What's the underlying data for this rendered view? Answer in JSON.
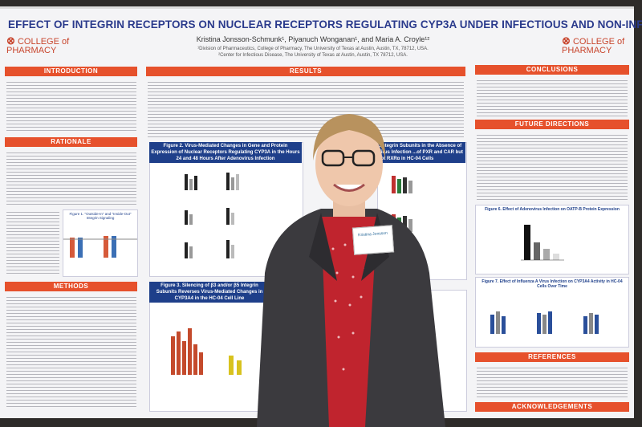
{
  "poster": {
    "title": "EFFECT OF INTEGRIN RECEPTORS ON NUCLEAR RECEPTORS REGULATING CYP3A UNDER INFECTIOUS AND NON-INFECTIOUS CONDITIONS",
    "authors": "Kristina Jonsson-Schmunk¹, Piyanuch Wonganan¹, and Maria A. Croyle¹²",
    "affiliation_1": "¹Division of Pharmaceutics, College of Pharmacy, The University of Texas at Austin, Austin, TX, 78712, USA.",
    "affiliation_2": "²Center for Infectious Disease, The University of Texas at Austin, Austin, TX 78712, USA.",
    "logo_line1": "COLLEGE of",
    "logo_line2": "PHARMACY",
    "sections": {
      "introduction": "INTRODUCTION",
      "rationale": "RATIONALE",
      "methods": "METHODS",
      "results": "RESULTS",
      "conclusions": "CONCLUSIONS",
      "future_directions": "FUTURE DIRECTIONS",
      "references": "REFERENCES",
      "acknowledgements": "ACKNOWLEDGEMENTS"
    },
    "fig1_title": "Figure 1. \"Outside-In\" and \"Inside-Out\" Integrin Signaling",
    "fig2_title": "Figure 2. Virus-Mediated Changes in Gene and Protein Expression of Nuclear Receptors Regulating CYP3A in the Hours 24 and 48 Hours After Adenovirus Infection",
    "fig3_title": "Figure 3. Silencing of β3 and/or β5 Integrin Subunits Reverses Virus-Mediated Changes in CYP3A4 in the HC-04 Cell Line",
    "fig4_title": "...ntegrin Subunits in the Absence of Virus Infection ...of PXR and CAR but not RXRα in HC-04 Cells",
    "fig6_title": "Figure 6. Effect of Adenovirus Infection on OATP-B Protein Expression",
    "fig7_title": "Figure 7. Effect of Influenza A Virus Infection on CYP3A4 Activity in HC-04 Cells Over Time"
  },
  "badge": {
    "text": "Kristina Jonsson"
  },
  "colors": {
    "header_orange": "#e6512c",
    "title_blue": "#2a3a8c",
    "figure_navy": "#1e3f8a",
    "shirt_red": "#c0242e",
    "jacket": "#3b3a3e"
  }
}
